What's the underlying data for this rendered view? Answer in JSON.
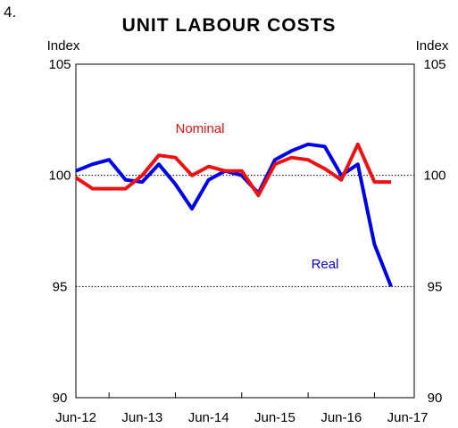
{
  "figure_number": "4.",
  "chart_data": {
    "type": "line",
    "title": "UNIT LABOUR COSTS",
    "ylabel_left": "Index",
    "ylabel_right": "Index",
    "ylim": [
      90,
      105
    ],
    "yticks": [
      90,
      95,
      100,
      105
    ],
    "gridlines_y": [
      95,
      100,
      105
    ],
    "xlim": [
      0,
      20.4
    ],
    "x_tick_labels": [
      {
        "label": "Jun-12",
        "x": 0
      },
      {
        "label": "Jun-13",
        "x": 4
      },
      {
        "label": "Jun-14",
        "x": 8
      },
      {
        "label": "Jun-15",
        "x": 12
      },
      {
        "label": "Jun-16",
        "x": 16
      },
      {
        "label": "Jun-17",
        "x": 20
      }
    ],
    "series": [
      {
        "name": "Real",
        "color": "#0000e6",
        "x": [
          0,
          1,
          2,
          3,
          4,
          5,
          6,
          7,
          8,
          9,
          10,
          11,
          12,
          13,
          14,
          15,
          16,
          17,
          18,
          19
        ],
        "values": [
          100.2,
          100.5,
          100.7,
          99.8,
          99.7,
          100.5,
          99.6,
          98.5,
          99.8,
          100.2,
          100.0,
          99.2,
          100.7,
          101.1,
          101.4,
          101.3,
          100.0,
          100.5,
          96.9,
          95.0
        ]
      },
      {
        "name": "Nominal",
        "color": "#ee1111",
        "x": [
          0,
          1,
          2,
          3,
          4,
          5,
          6,
          7,
          8,
          9,
          10,
          11,
          12,
          13,
          14,
          15,
          16,
          17,
          18,
          19
        ],
        "values": [
          99.9,
          99.4,
          99.4,
          99.4,
          100.0,
          100.9,
          100.8,
          100.0,
          100.4,
          100.2,
          100.2,
          99.1,
          100.5,
          100.8,
          100.7,
          100.3,
          99.8,
          101.4,
          99.7,
          99.7
        ]
      }
    ],
    "series_labels": {
      "nominal": "Nominal",
      "real": "Real"
    },
    "grid": true,
    "legend": "inline labels"
  }
}
